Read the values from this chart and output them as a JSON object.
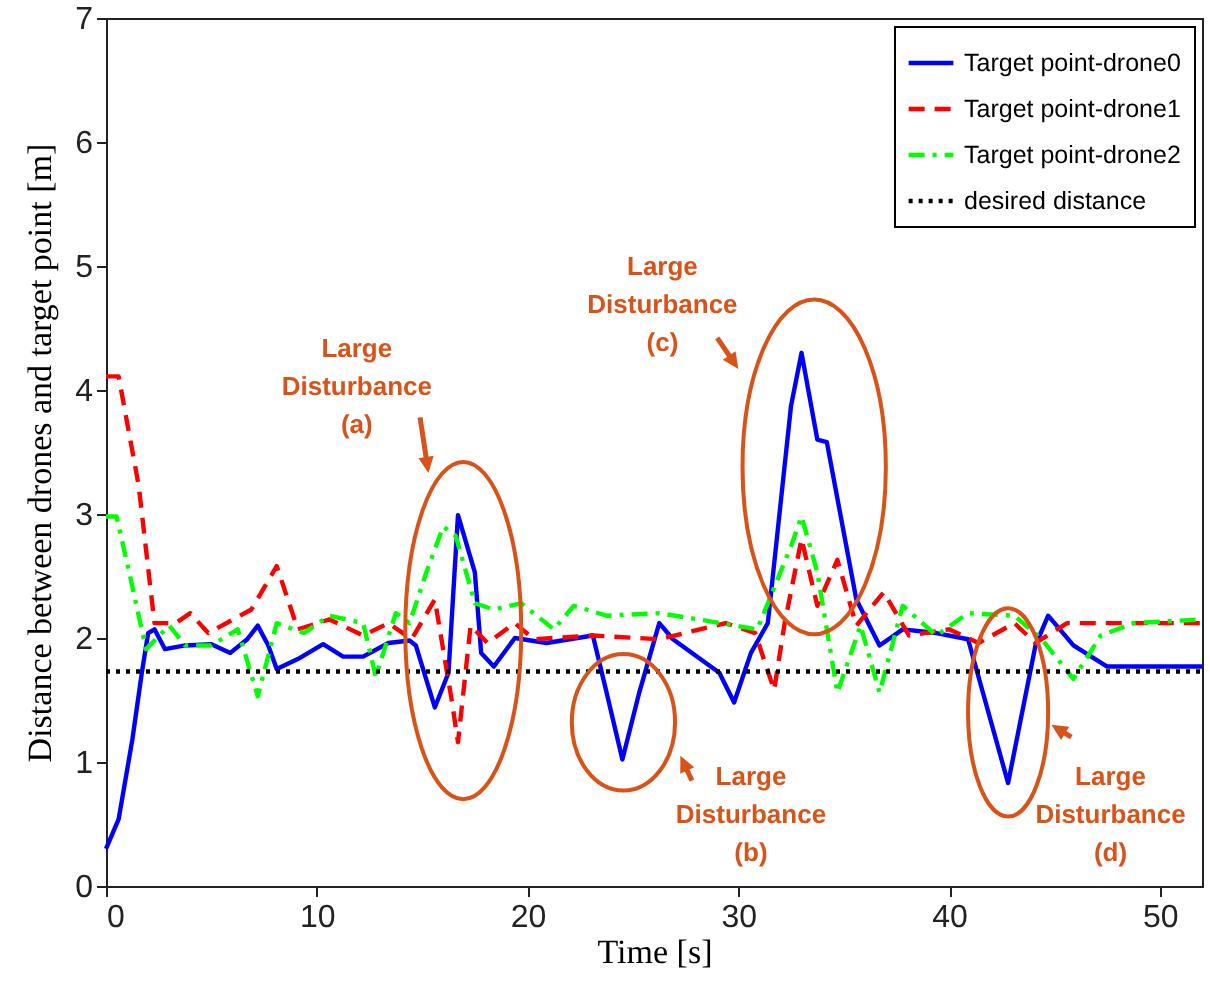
{
  "chart_data": {
    "type": "line",
    "xlabel": "Time [s]",
    "ylabel": "Distance between drones and target point [m]",
    "xlim": [
      0,
      52
    ],
    "xticks": [
      0,
      10,
      20,
      30,
      40,
      50
    ],
    "ylim": [
      0,
      7
    ],
    "yticks": [
      0,
      1,
      2,
      3,
      4,
      5,
      6,
      7
    ],
    "legend": "top right",
    "marker": "none",
    "grid": false,
    "series": [
      {
        "name": "Target point-drone0",
        "color": "#0000ff",
        "line_style": "solid",
        "x": [
          0,
          0.6,
          1.25,
          1.7,
          2.0,
          2.3,
          2.8,
          3.75,
          5,
          5.9,
          6.7,
          7.2,
          7.7,
          8.1,
          9.1,
          10.3,
          11.25,
          12.2,
          13.4,
          14.4,
          14.7,
          15.6,
          16.25,
          16.7,
          17.5,
          17.8,
          18.4,
          19.4,
          20.9,
          23.1,
          23.75,
          24.5,
          25.3,
          26.25,
          26.9,
          29.1,
          29.8,
          30.6,
          31.4,
          32.5,
          33.0,
          33.75,
          34.2,
          35.6,
          36.7,
          37.8,
          39.4,
          40.9,
          42.8,
          44.1,
          44.7,
          45.9,
          47.5,
          52
        ],
        "values": [
          0.3,
          0.54,
          1.18,
          1.72,
          2.04,
          2.07,
          1.91,
          1.94,
          1.95,
          1.88,
          1.99,
          2.1,
          1.94,
          1.75,
          1.83,
          1.95,
          1.85,
          1.85,
          1.96,
          1.98,
          1.94,
          1.44,
          1.72,
          2.99,
          2.53,
          1.88,
          1.77,
          2.0,
          1.96,
          2.02,
          1.56,
          1.02,
          1.56,
          2.12,
          1.99,
          1.72,
          1.48,
          1.88,
          2.12,
          3.87,
          4.3,
          3.6,
          3.58,
          2.31,
          1.94,
          2.07,
          2.04,
          1.99,
          0.83,
          1.94,
          2.18,
          1.94,
          1.77,
          1.77
        ]
      },
      {
        "name": "Target point-drone1",
        "color": "#ff0000",
        "line_style": "dashed",
        "x": [
          0,
          0.6,
          1.55,
          2.3,
          3.3,
          4.0,
          4.85,
          6.9,
          8.1,
          9.1,
          10.6,
          12.2,
          13.4,
          14.5,
          15.6,
          16.4,
          16.7,
          17.3,
          18.1,
          19.4,
          20.3,
          23.1,
          26.25,
          29.4,
          30.8,
          31.7,
          32.2,
          33.0,
          33.75,
          34.7,
          35.6,
          36.9,
          38.1,
          40,
          41.4,
          43.1,
          44.1,
          45.6,
          52
        ],
        "values": [
          4.11,
          4.11,
          3.23,
          2.12,
          2.12,
          2.2,
          2.04,
          2.23,
          2.58,
          2.07,
          2.15,
          2.02,
          2.12,
          1.99,
          2.31,
          1.5,
          1.16,
          2.1,
          1.96,
          2.12,
          1.99,
          2.02,
          1.99,
          2.12,
          2.04,
          1.58,
          2.12,
          2.8,
          2.26,
          2.63,
          2.1,
          2.37,
          2.02,
          2.07,
          1.96,
          2.12,
          1.96,
          2.12,
          2.12
        ]
      },
      {
        "name": "Target point-drone2",
        "color": "#00ff00",
        "line_style": "dashdot",
        "x": [
          0,
          0.5,
          1.1,
          1.9,
          3.0,
          3.75,
          5,
          6.25,
          7.2,
          8.1,
          9.4,
          10.6,
          12.2,
          12.8,
          13.75,
          14.4,
          15.2,
          16.0,
          16.6,
          17.5,
          18.4,
          19.7,
          21.25,
          22.2,
          23.75,
          26.25,
          28.1,
          30.9,
          32.5,
          33.0,
          33.75,
          34.7,
          35.8,
          36.7,
          37.8,
          39.4,
          40.9,
          43.1,
          44.4,
          45.9,
          47.2,
          48.75,
          52
        ],
        "values": [
          2.98,
          2.98,
          2.53,
          1.91,
          2.1,
          1.94,
          1.94,
          2.07,
          1.53,
          2.12,
          2.04,
          2.18,
          2.12,
          1.69,
          2.2,
          2.12,
          2.53,
          2.9,
          2.82,
          2.28,
          2.23,
          2.28,
          2.07,
          2.26,
          2.18,
          2.2,
          2.15,
          2.07,
          2.74,
          2.98,
          2.53,
          1.56,
          2.1,
          1.56,
          2.26,
          2.02,
          2.2,
          2.18,
          1.99,
          1.67,
          2.02,
          2.12,
          2.15
        ]
      },
      {
        "name": "desired distance",
        "color": "#000000",
        "line_style": "dotted",
        "x": [
          0,
          52
        ],
        "values": [
          1.73,
          1.73
        ]
      }
    ],
    "annotations": [
      "Large Disturbance (a)",
      "Large Disturbance (b)",
      "Large Disturbance (c)",
      "Large Disturbance (d)"
    ]
  }
}
